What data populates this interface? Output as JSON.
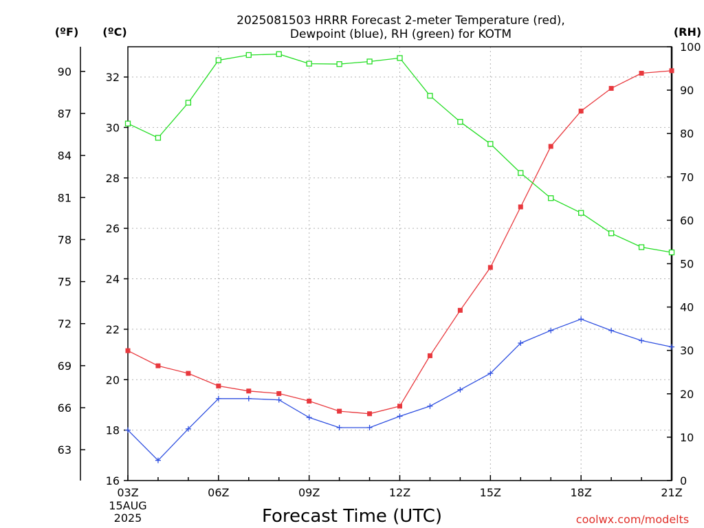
{
  "chart_data": {
    "type": "line",
    "title_line1": "2025081503 HRRR Forecast 2-meter Temperature (red),",
    "title_line2": "Dewpoint (blue), RH (green) for KOTM",
    "xlabel": "Forecast Time (UTC)",
    "credit": "coolwx.com/modelts",
    "left_outer_unit": "(ºF)",
    "left_inner_unit": "(ºC)",
    "right_unit": "(RH)",
    "x": [
      "03Z",
      "04Z",
      "05Z",
      "06Z",
      "07Z",
      "08Z",
      "09Z",
      "10Z",
      "11Z",
      "12Z",
      "13Z",
      "14Z",
      "15Z",
      "16Z",
      "17Z",
      "18Z",
      "19Z",
      "20Z",
      "21Z"
    ],
    "x_tick_labels": [
      "03Z",
      "06Z",
      "09Z",
      "12Z",
      "15Z",
      "18Z",
      "21Z"
    ],
    "x_first_tick_date": [
      "15AUG",
      "2025"
    ],
    "celsius_axis": {
      "min": 16,
      "max": 33.2,
      "ticks": [
        16,
        18,
        20,
        22,
        24,
        26,
        28,
        30,
        32
      ]
    },
    "fahrenheit_axis": {
      "ticks": [
        63,
        66,
        69,
        72,
        75,
        78,
        81,
        84,
        87,
        90
      ]
    },
    "rh_axis": {
      "min": 0,
      "max": 100,
      "ticks": [
        0,
        10,
        20,
        30,
        40,
        50,
        60,
        70,
        80,
        90,
        100
      ]
    },
    "grid": true,
    "series": [
      {
        "name": "Temperature",
        "color": "#e8383d",
        "marker": "filled-square",
        "axis": "celsius",
        "values": [
          21.15,
          20.55,
          20.25,
          19.75,
          19.55,
          19.45,
          19.15,
          18.75,
          18.65,
          18.95,
          20.95,
          22.75,
          24.45,
          26.85,
          29.25,
          30.65,
          31.55,
          32.15,
          32.25
        ]
      },
      {
        "name": "Dewpoint",
        "color": "#2e4fe0",
        "marker": "plus",
        "axis": "celsius",
        "values": [
          18.0,
          16.8,
          18.05,
          19.25,
          19.25,
          19.2,
          18.5,
          18.1,
          18.1,
          18.55,
          18.95,
          19.6,
          20.25,
          21.45,
          21.95,
          22.4,
          21.95,
          21.55,
          21.3
        ]
      },
      {
        "name": "RH",
        "color": "#22dd22",
        "marker": "open-square",
        "axis": "rh",
        "values": [
          82.3,
          79.0,
          87.1,
          96.9,
          98.1,
          98.3,
          96.1,
          96.0,
          96.6,
          97.4,
          88.7,
          82.7,
          77.6,
          70.9,
          65.1,
          61.7,
          57.0,
          53.8,
          52.6
        ]
      }
    ]
  }
}
